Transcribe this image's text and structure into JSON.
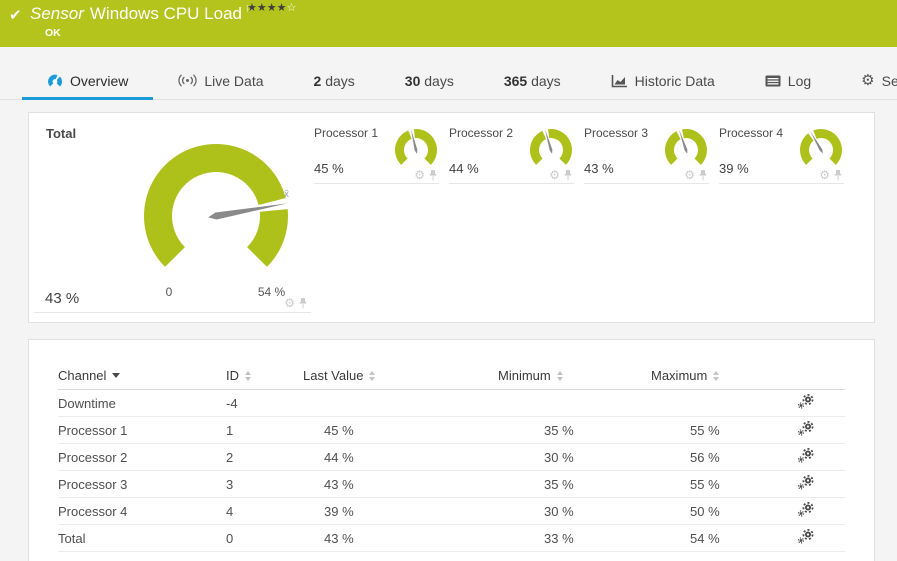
{
  "header": {
    "check": "✔",
    "title_prefix": "Sensor",
    "title": "Windows CPU Load",
    "flag": "⚐",
    "status": "OK",
    "stars_filled": 4,
    "stars_empty": 1
  },
  "tabs": [
    {
      "prefix": "",
      "label": "Overview",
      "active": true
    },
    {
      "prefix": "",
      "label": "Live Data"
    },
    {
      "prefix": "2",
      "label": "days"
    },
    {
      "prefix": "30",
      "label": "days"
    },
    {
      "prefix": "365",
      "label": "days"
    },
    {
      "prefix": "",
      "label": "Historic Data"
    },
    {
      "prefix": "",
      "label": "Log"
    },
    {
      "prefix": "",
      "label": "Settings"
    }
  ],
  "gauges": {
    "total": {
      "label": "Total",
      "value": 43,
      "max": 54,
      "value_label": "43 %",
      "scale_min_label": "0",
      "scale_max_label": "54 %",
      "avg_marker": "x̄"
    },
    "processors": [
      {
        "label": "Processor 1",
        "value": 45,
        "max": 100,
        "value_label": "45 %"
      },
      {
        "label": "Processor 2",
        "value": 44,
        "max": 100,
        "value_label": "44 %"
      },
      {
        "label": "Processor 3",
        "value": 43,
        "max": 100,
        "value_label": "43 %"
      },
      {
        "label": "Processor 4",
        "value": 39,
        "max": 100,
        "value_label": "39 %"
      }
    ]
  },
  "table": {
    "columns": {
      "channel": "Channel",
      "id": "ID",
      "last": "Last Value",
      "min": "Minimum",
      "max": "Maximum"
    },
    "rows": [
      {
        "channel": "Downtime",
        "id": "-4",
        "last": "",
        "min": "",
        "max": ""
      },
      {
        "channel": "Processor 1",
        "id": "1",
        "last": "45 %",
        "min": "35 %",
        "max": "55 %"
      },
      {
        "channel": "Processor 2",
        "id": "2",
        "last": "44 %",
        "min": "30 %",
        "max": "56 %"
      },
      {
        "channel": "Processor 3",
        "id": "3",
        "last": "43 %",
        "min": "35 %",
        "max": "55 %"
      },
      {
        "channel": "Processor 4",
        "id": "4",
        "last": "39 %",
        "min": "30 %",
        "max": "50 %"
      },
      {
        "channel": "Total",
        "id": "0",
        "last": "43 %",
        "min": "33 %",
        "max": "54 %"
      }
    ]
  },
  "colors": {
    "brand_green": "#b5c31d",
    "gauge_green": "#aec01a",
    "accent_blue": "#1b9cd9",
    "needle_gray": "#8a8a8a"
  }
}
